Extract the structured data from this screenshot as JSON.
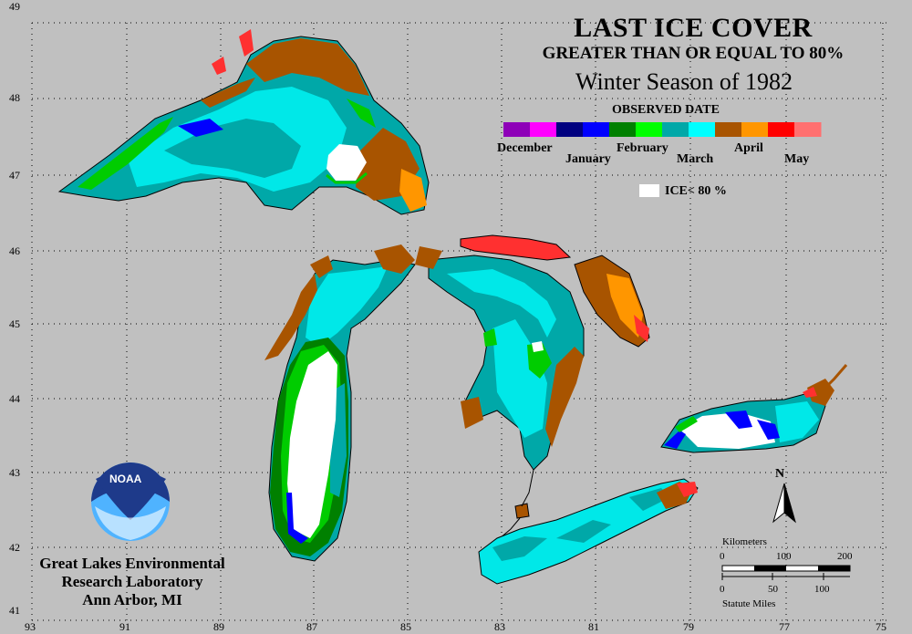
{
  "title": {
    "line1": "LAST ICE COVER",
    "line2": "GREATER THAN OR EQUAL TO 80%",
    "line3": "Winter Season of 1982"
  },
  "legend": {
    "title": "OBSERVED DATE",
    "colors": [
      "#8e00b8",
      "#ff00ff",
      "#000080",
      "#0000ff",
      "#008000",
      "#00ff00",
      "#00a8a8",
      "#00ffff",
      "#a85400",
      "#ff9600",
      "#ff0000",
      "#ff7070"
    ],
    "labels": {
      "december": "December",
      "january": "January",
      "february": "February",
      "march": "March",
      "april": "April",
      "may": "May"
    },
    "ice_label": "ICE< 80 %"
  },
  "axes": {
    "lat_ticks": [
      "49",
      "48",
      "47",
      "46",
      "45",
      "44",
      "43",
      "42",
      "41"
    ],
    "lon_ticks": [
      "93",
      "91",
      "89",
      "87",
      "85",
      "83",
      "81",
      "79",
      "77",
      "75"
    ]
  },
  "scale": {
    "km_title": "Kilometers",
    "km_ticks": [
      "0",
      "100",
      "200"
    ],
    "mi_ticks": [
      "0",
      "50",
      "100"
    ],
    "mi_title": "Statute Miles"
  },
  "north": "N",
  "logo_text": "NOAA",
  "credit": {
    "line1": "Great Lakes Environmental",
    "line2": "Research Laboratory",
    "line3": "Ann Arbor, MI"
  },
  "colors": {
    "background": "#c0c0c0",
    "march_dark": "#00a8a8",
    "march_light": "#00ffff",
    "april_dark": "#a85400",
    "april_light": "#ff9600",
    "may": "#ff3030",
    "feb_dark": "#008000",
    "feb_light": "#00ff00",
    "jan": "#0000ff",
    "ice_lt80": "#ffffff"
  }
}
